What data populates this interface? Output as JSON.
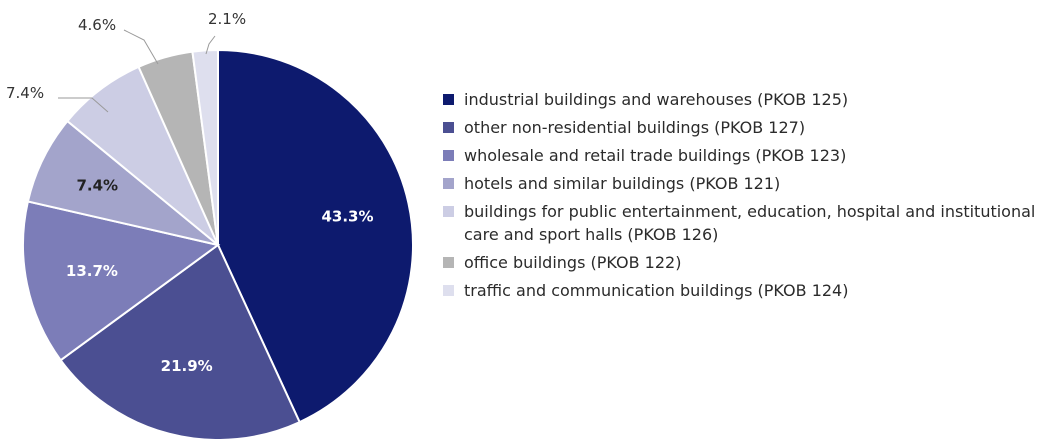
{
  "chart_data": {
    "type": "pie",
    "start_angle_deg": 0,
    "direction": "clockwise",
    "slices": [
      {
        "label": "industrial buildings and warehouses (PKOB 125)",
        "value": 43.3,
        "display": "43.3%",
        "color": "#0d1a6e",
        "label_color": "#ffffff",
        "label_position": "inside"
      },
      {
        "label": "other non-residential buildings (PKOB 127)",
        "value": 21.9,
        "display": "21.9%",
        "color": "#4b4f92",
        "label_color": "#ffffff",
        "label_position": "inside"
      },
      {
        "label": "wholesale and retail trade buildings (PKOB 123)",
        "value": 13.7,
        "display": "13.7%",
        "color": "#7c7db8",
        "label_color": "#ffffff",
        "label_position": "inside"
      },
      {
        "label": "hotels and similar buildings (PKOB 121)",
        "value": 7.4,
        "display": "7.4%",
        "color": "#a3a4cb",
        "label_color": "#222222",
        "label_position": "inside"
      },
      {
        "label": "buildings for public entertainment, education, hospital and institutional care and sport halls (PKOB 126)",
        "value": 7.4,
        "display": "7.4%",
        "color": "#cccde4",
        "label_color": "#333333",
        "label_position": "outside"
      },
      {
        "label": "office buildings (PKOB 122)",
        "value": 4.6,
        "display": "4.6%",
        "color": "#b5b5b5",
        "label_color": "#333333",
        "label_position": "outside"
      },
      {
        "label": "traffic and communication buildings (PKOB 124)",
        "value": 2.1,
        "display": "2.1%",
        "color": "#dedfee",
        "label_color": "#333333",
        "label_position": "outside"
      }
    ],
    "legend_position": "right"
  },
  "legend": {
    "items": [
      {
        "label": "industrial buildings and warehouses (PKOB 125)",
        "color": "#0d1a6e"
      },
      {
        "label": "other non-residential buildings (PKOB 127)",
        "color": "#4b4f92"
      },
      {
        "label": "wholesale and retail trade buildings (PKOB 123)",
        "color": "#7c7db8"
      },
      {
        "label": "hotels and similar buildings (PKOB 121)",
        "color": "#a3a4cb"
      },
      {
        "label": "buildings for public entertainment, education, hospital and institutional care and sport halls (PKOB 126)",
        "color": "#cccde4"
      },
      {
        "label": "office buildings (PKOB 122)",
        "color": "#b5b5b5"
      },
      {
        "label": "traffic and communication buildings (PKOB 124)",
        "color": "#dedfee"
      }
    ]
  }
}
